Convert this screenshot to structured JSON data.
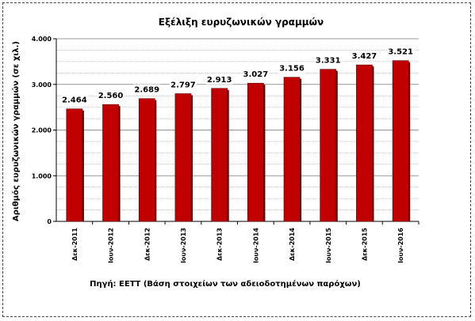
{
  "chart_data": {
    "type": "bar",
    "title": "Εξέλιξη ευρυζωνικών γραμμών",
    "ylabel": "Αριθμός ευρυζωνικών γραμμών (σε χιλ.)",
    "xlabel": "",
    "categories": [
      "Δεκ-2011",
      "Ιουν-2012",
      "Δεκ-2012",
      "Ιουν-2013",
      "Δεκ-2013",
      "Ιουν-2014",
      "Δεκ-2014",
      "Ιουν-2015",
      "Δεκ-2015",
      "Ιουν-2016"
    ],
    "values": [
      2464,
      2560,
      2689,
      2797,
      2913,
      3027,
      3156,
      3331,
      3427,
      3521
    ],
    "value_labels": [
      "2.464",
      "2.560",
      "2.689",
      "2.797",
      "2.913",
      "3.027",
      "3.156",
      "3.331",
      "3.427",
      "3.521"
    ],
    "ylim": [
      0,
      4000
    ],
    "yticks": [
      0,
      1000,
      2000,
      3000,
      4000
    ],
    "ytick_labels": [
      "0",
      "1.000",
      "2.000",
      "3.000",
      "4.000"
    ],
    "grid": true,
    "bar_color": "#c00000",
    "source": "Πηγή: ΕΕΤΤ (Βάση στοιχείων των αδειοδοτημένων παρόχων)"
  }
}
